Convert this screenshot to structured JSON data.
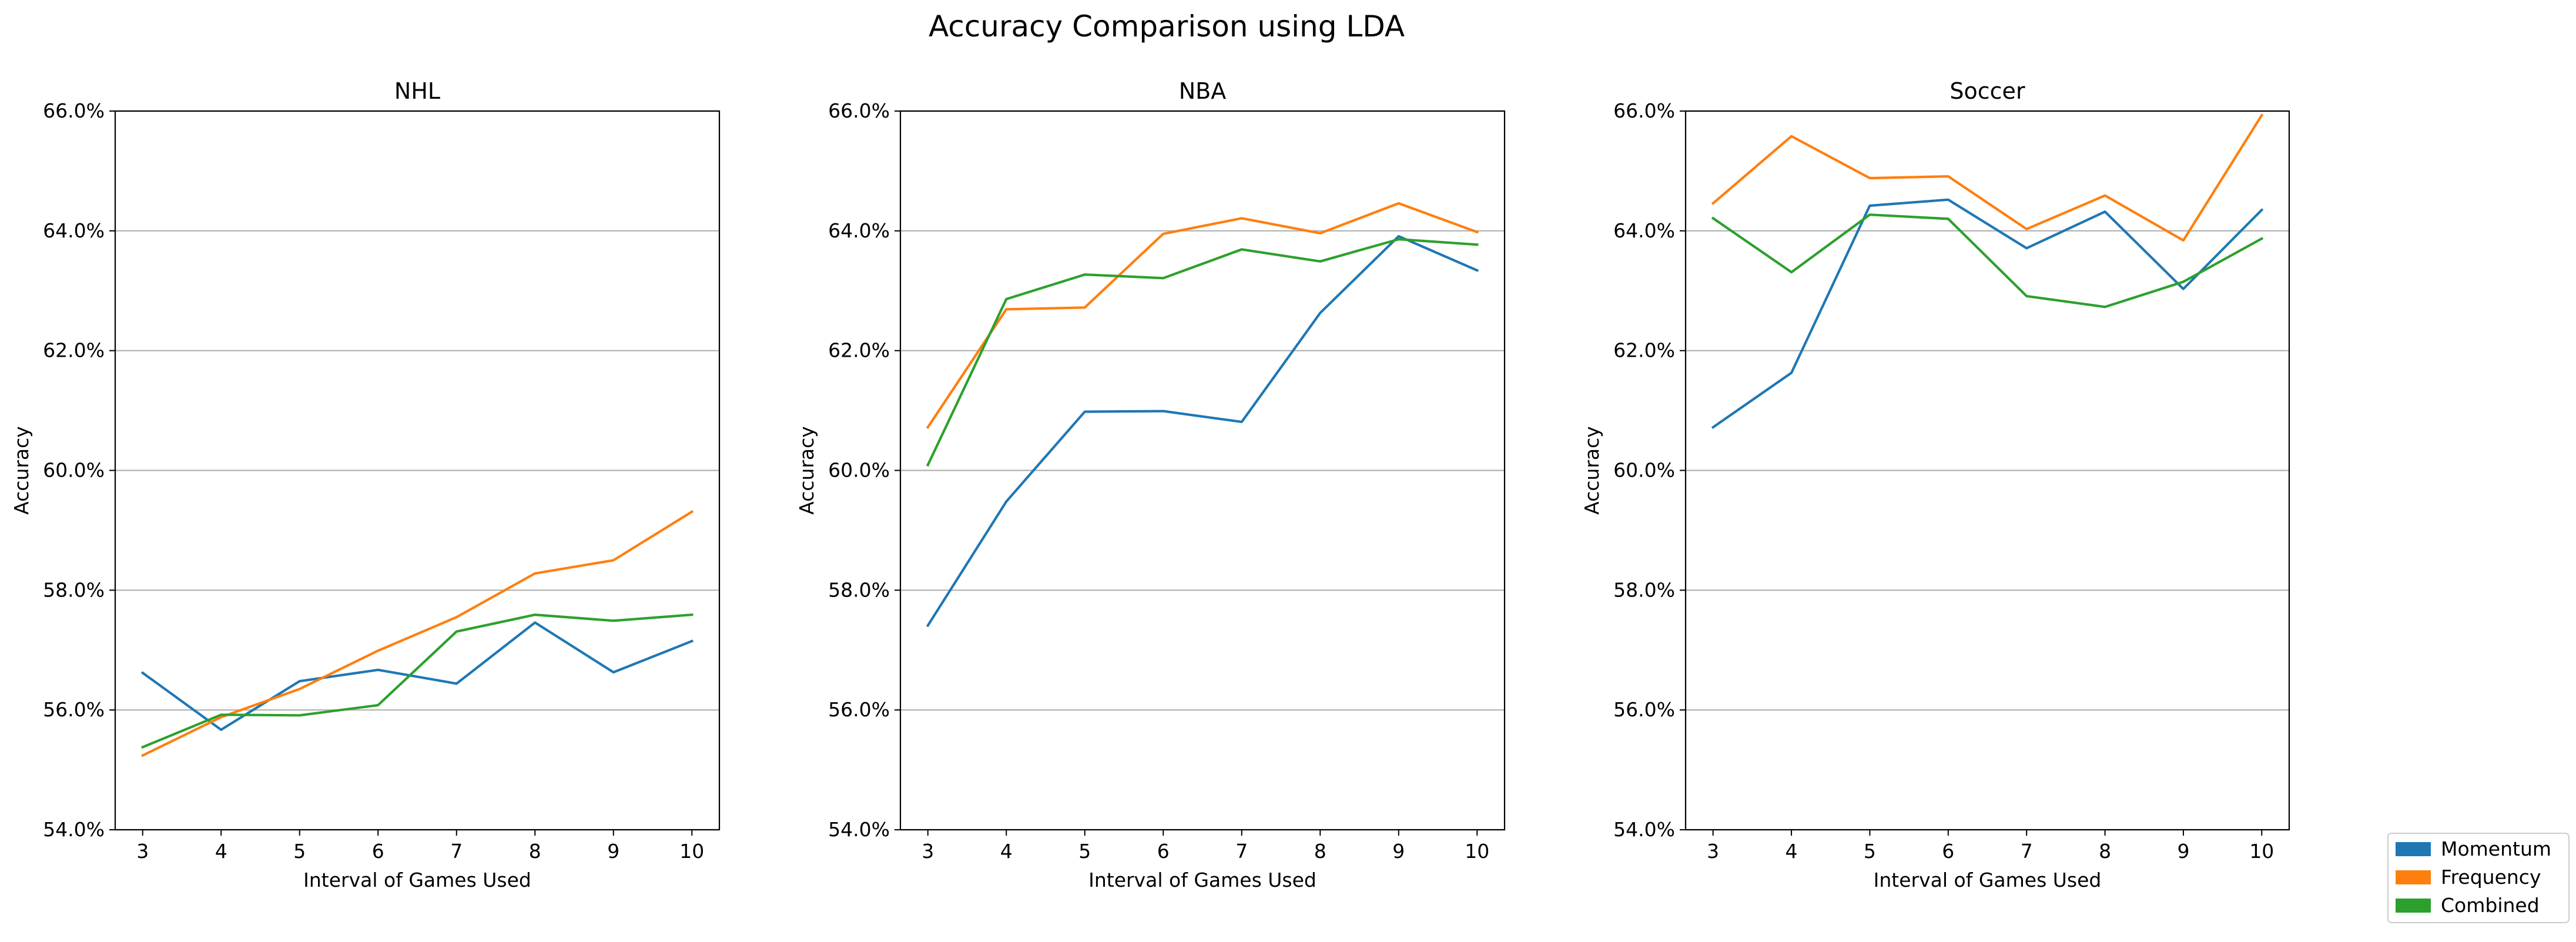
{
  "figure": {
    "title": "Accuracy Comparison using LDA"
  },
  "legend": {
    "placement": "bottom-right",
    "items": [
      {
        "label": "Momentum",
        "color": "#1f77b4"
      },
      {
        "label": "Frequency",
        "color": "#ff7f0e"
      },
      {
        "label": "Combined",
        "color": "#2ca02c"
      }
    ]
  },
  "chart_data": [
    {
      "type": "line",
      "title": "NHL",
      "xlabel": "Interval of Games Used",
      "ylabel": "Accuracy",
      "x": [
        3,
        4,
        5,
        6,
        7,
        8,
        9,
        10
      ],
      "xticks": [
        "3",
        "4",
        "5",
        "6",
        "7",
        "8",
        "9",
        "10"
      ],
      "ylim": [
        54.0,
        66.0
      ],
      "yticks": [
        "54.0%",
        "56.0%",
        "58.0%",
        "60.0%",
        "62.0%",
        "64.0%",
        "66.0%"
      ],
      "grid": "y",
      "series": [
        {
          "name": "Momentum",
          "color": "#1f77b4",
          "values": [
            56.62,
            55.67,
            56.48,
            56.67,
            56.44,
            57.46,
            56.63,
            57.15
          ]
        },
        {
          "name": "Frequency",
          "color": "#ff7f0e",
          "values": [
            55.24,
            55.88,
            56.35,
            56.99,
            57.55,
            58.28,
            58.5,
            59.31
          ]
        },
        {
          "name": "Combined",
          "color": "#2ca02c",
          "values": [
            55.38,
            55.92,
            55.91,
            56.08,
            57.31,
            57.59,
            57.49,
            57.59
          ]
        }
      ]
    },
    {
      "type": "line",
      "title": "NBA",
      "xlabel": "Interval of Games Used",
      "ylabel": "Accuracy",
      "x": [
        3,
        4,
        5,
        6,
        7,
        8,
        9,
        10
      ],
      "xticks": [
        "3",
        "4",
        "5",
        "6",
        "7",
        "8",
        "9",
        "10"
      ],
      "ylim": [
        54.0,
        66.0
      ],
      "yticks": [
        "54.0%",
        "56.0%",
        "58.0%",
        "60.0%",
        "62.0%",
        "64.0%",
        "66.0%"
      ],
      "grid": "y",
      "series": [
        {
          "name": "Momentum",
          "color": "#1f77b4",
          "values": [
            57.41,
            59.48,
            60.98,
            60.99,
            60.81,
            62.63,
            63.91,
            63.34
          ]
        },
        {
          "name": "Frequency",
          "color": "#ff7f0e",
          "values": [
            60.72,
            62.69,
            62.72,
            63.95,
            64.21,
            63.96,
            64.46,
            63.98
          ]
        },
        {
          "name": "Combined",
          "color": "#2ca02c",
          "values": [
            60.09,
            62.86,
            63.27,
            63.21,
            63.69,
            63.49,
            63.86,
            63.77
          ]
        }
      ]
    },
    {
      "type": "line",
      "title": "Soccer",
      "xlabel": "Interval of Games Used",
      "ylabel": "Accuracy",
      "x": [
        3,
        4,
        5,
        6,
        7,
        8,
        9,
        10
      ],
      "xticks": [
        "3",
        "4",
        "5",
        "6",
        "7",
        "8",
        "9",
        "10"
      ],
      "ylim": [
        54.0,
        66.0
      ],
      "yticks": [
        "54.0%",
        "56.0%",
        "58.0%",
        "60.0%",
        "62.0%",
        "64.0%",
        "66.0%"
      ],
      "grid": "y",
      "series": [
        {
          "name": "Momentum",
          "color": "#1f77b4",
          "values": [
            60.72,
            61.63,
            64.42,
            64.52,
            63.71,
            64.32,
            63.03,
            64.35
          ]
        },
        {
          "name": "Frequency",
          "color": "#ff7f0e",
          "values": [
            64.46,
            65.58,
            64.88,
            64.91,
            64.03,
            64.59,
            63.84,
            65.93
          ]
        },
        {
          "name": "Combined",
          "color": "#2ca02c",
          "values": [
            64.21,
            63.31,
            64.27,
            64.2,
            62.91,
            62.73,
            63.15,
            63.87
          ]
        }
      ]
    }
  ]
}
